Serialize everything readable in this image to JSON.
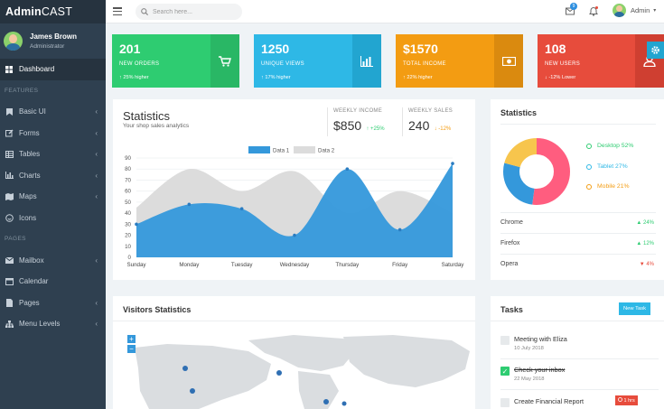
{
  "brand": {
    "bold": "Admin",
    "rest": "CAST"
  },
  "user": {
    "name": "James Brown",
    "role": "Administrator"
  },
  "nav": [
    {
      "label": "Dashboard",
      "icon": "dashboard-icon",
      "active": true
    },
    {
      "section": "FEATURES"
    },
    {
      "label": "Basic UI",
      "icon": "bookmark-icon",
      "chevron": "‹"
    },
    {
      "label": "Forms",
      "icon": "edit-icon",
      "chevron": "‹"
    },
    {
      "label": "Tables",
      "icon": "table-icon",
      "chevron": "‹"
    },
    {
      "label": "Charts",
      "icon": "bar-chart-icon",
      "chevron": "‹"
    },
    {
      "label": "Maps",
      "icon": "map-icon",
      "chevron": "‹"
    },
    {
      "label": "Icons",
      "icon": "smile-icon"
    },
    {
      "section": "PAGES"
    },
    {
      "label": "Mailbox",
      "icon": "envelope-icon",
      "chevron": "‹"
    },
    {
      "label": "Calendar",
      "icon": "calendar-icon"
    },
    {
      "label": "Pages",
      "icon": "file-icon",
      "chevron": "‹"
    },
    {
      "label": "Menu Levels",
      "icon": "sitemap-icon",
      "chevron": "‹"
    }
  ],
  "topbar": {
    "search_placeholder": "Search here...",
    "mail_badge": "9",
    "admin_label": "Admin"
  },
  "stats": [
    {
      "value": "201",
      "label": "NEW ORDERS",
      "sub": "↑ 25% higher",
      "icon": "cart-icon"
    },
    {
      "value": "1250",
      "label": "UNIQUE VIEWS",
      "sub": "↑ 17% higher",
      "icon": "bar-chart-icon"
    },
    {
      "value": "$1570",
      "label": "TOTAL INCOME",
      "sub": "↑ 22% higher",
      "icon": "money-icon"
    },
    {
      "value": "108",
      "label": "NEW USERS",
      "sub": "↓ -12% Lower",
      "icon": "user-icon"
    }
  ],
  "statistics": {
    "title": "Statistics",
    "subtitle": "Your shop sales analytics",
    "weekly_income": {
      "label": "WEEKLY INCOME",
      "value": "$850",
      "change": "↑ +25%"
    },
    "weekly_sales": {
      "label": "WEEKLY SALES",
      "value": "240",
      "change": "↓ -12%"
    }
  },
  "chart_data": {
    "type": "area",
    "categories": [
      "Sunday",
      "Monday",
      "Tuesday",
      "Wednesday",
      "Thursday",
      "Friday",
      "Saturday"
    ],
    "series": [
      {
        "name": "Data 1",
        "color": "#3498db",
        "values": [
          30,
          48,
          44,
          20,
          80,
          25,
          85
        ]
      },
      {
        "name": "Data 2",
        "color": "#dcdcdc",
        "values": [
          45,
          80,
          60,
          78,
          40,
          60,
          40
        ]
      }
    ],
    "ylim": [
      0,
      90
    ],
    "yticks": [
      0,
      10,
      20,
      30,
      40,
      50,
      60,
      70,
      80,
      90
    ],
    "grid": true,
    "legend": "top"
  },
  "donut": {
    "title": "Statistics",
    "legend": [
      {
        "label": "Desktop 52%",
        "color": "#2ecc71"
      },
      {
        "label": "Tablet 27%",
        "color": "#2eb8e6"
      },
      {
        "label": "Mobile 21%",
        "color": "#f39c12"
      }
    ],
    "browsers": [
      {
        "name": "Chrome",
        "change": "▲ 24%",
        "color": "#2ecc71"
      },
      {
        "name": "Firefox",
        "change": "▲ 12%",
        "color": "#2ecc71"
      },
      {
        "name": "Opera",
        "change": "▼ 4%",
        "color": "#e74c3c"
      }
    ]
  },
  "visitors": {
    "title": "Visitors Statistics",
    "zoom_in": "+",
    "zoom_out": "−"
  },
  "tasks": {
    "title": "Tasks",
    "new_button": "New Task",
    "items": [
      {
        "title": "Meeting with Eliza",
        "date": "10 July 2018",
        "done": false
      },
      {
        "title": "Check your inbox",
        "date": "22 May 2018",
        "done": true
      },
      {
        "title": "Create Financial Report",
        "badge": "1 hrs",
        "done": false
      }
    ]
  }
}
